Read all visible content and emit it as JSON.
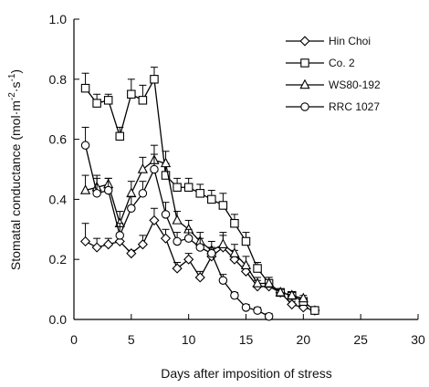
{
  "chart_data": {
    "type": "line",
    "xlabel": "Days after imposition of stress",
    "ylabel_main": "Stomatal conductance (mol·m",
    "ylabel_exp1": "-2",
    "ylabel_mid": "·s",
    "ylabel_exp2": "-1",
    "ylabel_end": ")",
    "xlim": [
      0,
      30
    ],
    "ylim": [
      0,
      1.0
    ],
    "x_ticks": [
      "0",
      "5",
      "10",
      "15",
      "20",
      "25",
      "30"
    ],
    "y_ticks": [
      "0.0",
      "0.2",
      "0.4",
      "0.6",
      "0.8",
      "1.0"
    ],
    "grid": false,
    "legend_position": "top-right",
    "series": [
      {
        "name": "Hin Choi",
        "marker": "diamond",
        "x": [
          1,
          2,
          3,
          4,
          5,
          6,
          7,
          8,
          9,
          10,
          11,
          12,
          13,
          14,
          15,
          16,
          17,
          18,
          19,
          20,
          21
        ],
        "y": [
          0.26,
          0.24,
          0.25,
          0.26,
          0.22,
          0.25,
          0.33,
          0.27,
          0.17,
          0.2,
          0.14,
          0.21,
          0.24,
          0.2,
          0.16,
          0.11,
          0.11,
          0.09,
          0.05,
          0.04,
          0.03
        ],
        "err": [
          0.06,
          0.03,
          0.02,
          0.02,
          0.01,
          0.03,
          0.04,
          0.03,
          0.02,
          0.02,
          0.02,
          0.03,
          0.04,
          0.03,
          0.02,
          0.02,
          0.02,
          0.01,
          0.01,
          0.01,
          0.01
        ]
      },
      {
        "name": "Co. 2",
        "marker": "square",
        "x": [
          1,
          2,
          3,
          4,
          5,
          6,
          7,
          8,
          9,
          10,
          11,
          12,
          13,
          14,
          15,
          16,
          17,
          18,
          19,
          20,
          21
        ],
        "y": [
          0.77,
          0.72,
          0.73,
          0.61,
          0.75,
          0.73,
          0.8,
          0.48,
          0.44,
          0.44,
          0.42,
          0.4,
          0.38,
          0.32,
          0.26,
          0.17,
          0.12,
          0.09,
          0.08,
          0.06,
          0.03
        ],
        "err": [
          0.05,
          0.03,
          0.02,
          0.03,
          0.05,
          0.05,
          0.04,
          0.04,
          0.03,
          0.03,
          0.03,
          0.03,
          0.04,
          0.03,
          0.03,
          0.02,
          0.02,
          0.01,
          0.01,
          0.01,
          0.01
        ]
      },
      {
        "name": "WS80-192",
        "marker": "triangle",
        "x": [
          1,
          2,
          3,
          4,
          5,
          6,
          7,
          8,
          9,
          10,
          11,
          12,
          13,
          14,
          15,
          16,
          17,
          18,
          19,
          20
        ],
        "y": [
          0.43,
          0.44,
          0.45,
          0.32,
          0.42,
          0.5,
          0.53,
          0.52,
          0.33,
          0.3,
          0.26,
          0.23,
          0.25,
          0.22,
          0.18,
          0.12,
          0.12,
          0.09,
          0.08,
          0.07
        ],
        "err": [
          0.05,
          0.03,
          0.02,
          0.04,
          0.04,
          0.04,
          0.05,
          0.04,
          0.03,
          0.03,
          0.03,
          0.03,
          0.04,
          0.03,
          0.03,
          0.02,
          0.02,
          0.01,
          0.01,
          0.01
        ]
      },
      {
        "name": "RRC 1027",
        "marker": "circle",
        "x": [
          1,
          2,
          3,
          4,
          5,
          6,
          7,
          8,
          9,
          10,
          11,
          12,
          13,
          14,
          15,
          16,
          17
        ],
        "y": [
          0.58,
          0.42,
          0.43,
          0.28,
          0.37,
          0.42,
          0.5,
          0.35,
          0.26,
          0.27,
          0.24,
          0.22,
          0.13,
          0.08,
          0.04,
          0.03,
          0.01
        ],
        "err": [
          0.06,
          0.06,
          0.04,
          0.04,
          0.04,
          0.04,
          0.05,
          0.04,
          0.03,
          0.03,
          0.03,
          0.02,
          0.02,
          0.01,
          0.01,
          0.01,
          0.01
        ]
      }
    ]
  }
}
